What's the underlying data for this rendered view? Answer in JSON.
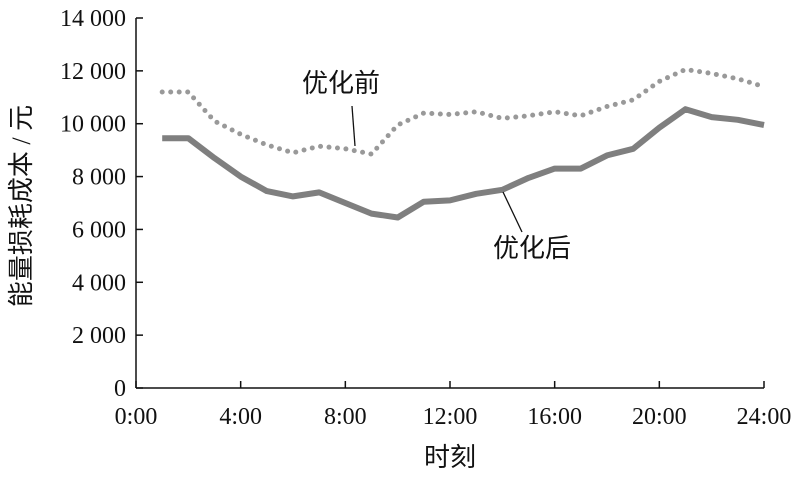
{
  "chart_data": {
    "type": "line",
    "xlabel": "时刻",
    "ylabel": "能量损耗成本 / 元",
    "xlim": [
      0,
      24
    ],
    "ylim": [
      0,
      14000
    ],
    "x_ticks": [
      0,
      4,
      8,
      12,
      16,
      20,
      24
    ],
    "x_tick_labels": [
      "0:00",
      "4:00",
      "8:00",
      "12:00",
      "16:00",
      "20:00",
      "24:00"
    ],
    "y_ticks": [
      0,
      2000,
      4000,
      6000,
      8000,
      10000,
      12000,
      14000
    ],
    "y_tick_labels": [
      "0",
      "2 000",
      "4 000",
      "6 000",
      "8 000",
      "10 000",
      "12 000",
      "14 000"
    ],
    "grid": false,
    "x": [
      1,
      2,
      3,
      4,
      5,
      6,
      7,
      8,
      9,
      10,
      11,
      12,
      13,
      14,
      15,
      16,
      17,
      18,
      19,
      20,
      21,
      22,
      23,
      24
    ],
    "series": [
      {
        "name": "优化前",
        "style": "dotted",
        "color": "#999999",
        "values": [
          11200,
          11200,
          10100,
          9600,
          9200,
          8900,
          9150,
          9050,
          8850,
          9950,
          10400,
          10350,
          10450,
          10200,
          10300,
          10450,
          10300,
          10650,
          10900,
          11600,
          12050,
          11900,
          11700,
          11400
        ]
      },
      {
        "name": "优化后",
        "style": "solid",
        "color": "#7f7f7f",
        "values": [
          9450,
          9450,
          8700,
          8000,
          7450,
          7250,
          7400,
          7000,
          6600,
          6450,
          7050,
          7100,
          7350,
          7500,
          7950,
          8300,
          8300,
          8800,
          9050,
          9850,
          10550,
          10250,
          10150,
          9950
        ]
      }
    ]
  }
}
